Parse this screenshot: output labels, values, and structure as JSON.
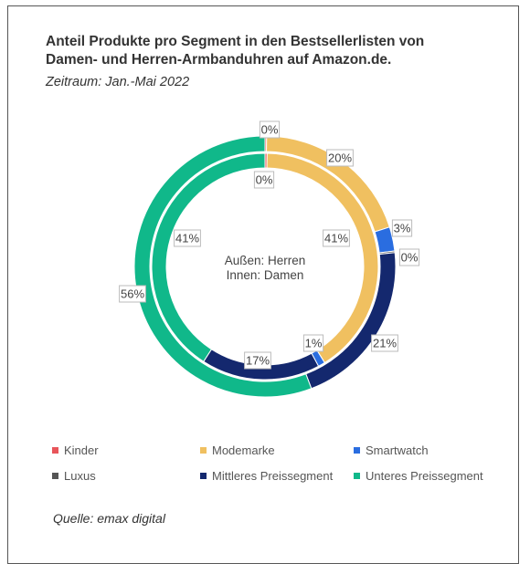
{
  "title_line1": "Anteil Produkte pro Segment in den Bestsellerlisten  von",
  "title_line2": "Damen- und Herren-Armbanduhren auf Amazon.de.",
  "subtitle": "Zeitraum:  Jan.-Mai 2022",
  "center_line1": "Außen: Herren",
  "center_line2": "Innen: Damen",
  "source": "Quelle: emax digital",
  "colors": {
    "Kinder": "#e8555a",
    "Modemarke": "#f0c060",
    "Smartwatch": "#2a6de0",
    "Luxus": "#555555",
    "Mittleres Preissegment": "#14286e",
    "Unteres Preissegment": "#10b88a"
  },
  "chart_data": {
    "type": "donut",
    "title": "Anteil Produkte pro Segment in den Bestsellerlisten von Damen- und Herren-Armbanduhren auf Amazon.de.",
    "categories": [
      "Kinder",
      "Modemarke",
      "Smartwatch",
      "Luxus",
      "Mittleres Preissegment",
      "Unteres Preissegment"
    ],
    "series": [
      {
        "name": "Herren",
        "ring": "outer",
        "values": [
          0.2,
          20,
          3,
          0.2,
          21,
          56
        ],
        "labels": [
          "0%",
          "20%",
          "3%",
          "0%",
          "21%",
          "56%"
        ]
      },
      {
        "name": "Damen",
        "ring": "inner",
        "values": [
          0.3,
          41,
          1,
          0.0,
          17,
          41
        ],
        "labels": [
          "0%",
          "41%",
          "1%",
          "",
          "17%",
          "41%"
        ]
      }
    ],
    "legend_position": "bottom"
  }
}
